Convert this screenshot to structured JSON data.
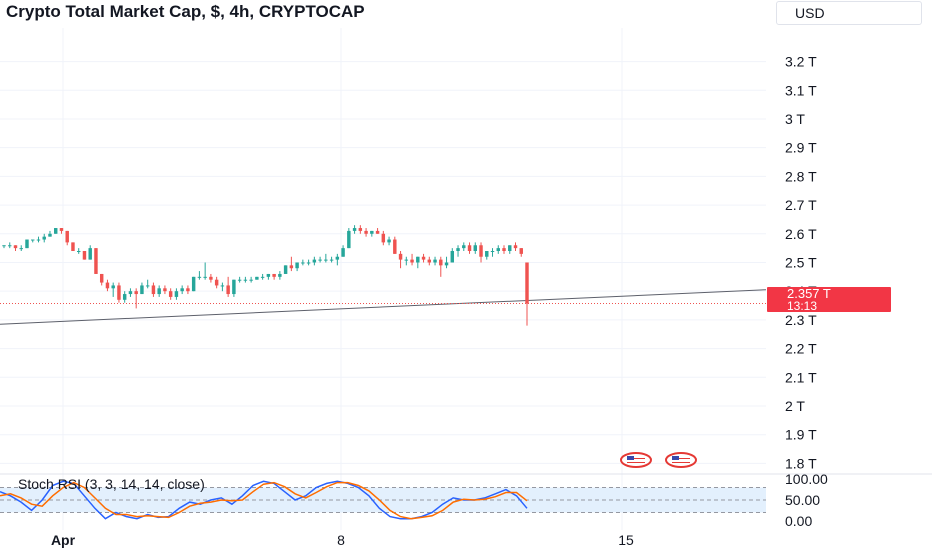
{
  "header": {
    "title": "Crypto Total Market Cap, $, 4h, CRYPTOCAP",
    "currency": "USD"
  },
  "price_badge": {
    "price": "2.357 T",
    "countdown": "13:13"
  },
  "indicator": {
    "label": "Stoch RSI (3, 3, 14, 14, close)"
  },
  "colors": {
    "up": "#26a69a",
    "down": "#ef5350",
    "k_line": "#2962ff",
    "d_line": "#ff6d00",
    "band_fill": "#e3f0fd",
    "trendline": "#5d606b",
    "price_line": "#ef5350"
  },
  "icons": [
    "us-flag-event-icon",
    "us-flag-event-icon"
  ],
  "chart_data": [
    {
      "type": "candlestick",
      "title": "Crypto Total Market Cap, $, 4h, CRYPTOCAP",
      "y_ticks": [
        "3.2 T",
        "3.1 T",
        "3 T",
        "2.9 T",
        "2.8 T",
        "2.7 T",
        "2.6 T",
        "2.5 T",
        "2.4 T",
        "2.3 T",
        "2.2 T",
        "2.1 T",
        "2 T",
        "1.9 T",
        "1.8 T"
      ],
      "y_tick_values": [
        3.2,
        3.1,
        3.0,
        2.9,
        2.8,
        2.7,
        2.6,
        2.5,
        2.4,
        2.3,
        2.2,
        2.1,
        2.0,
        1.9,
        1.8
      ],
      "ylim": [
        1.77,
        3.31
      ],
      "x_ticks": [
        "Apr",
        "8",
        "15"
      ],
      "last_price": 2.357,
      "trendline": {
        "start": 2.285,
        "end": 2.405
      },
      "candles": [
        [
          2.56,
          2.56,
          2.55,
          2.56
        ],
        [
          2.56,
          2.57,
          2.55,
          2.56
        ],
        [
          2.56,
          2.56,
          2.54,
          2.55
        ],
        [
          2.55,
          2.56,
          2.54,
          2.55
        ],
        [
          2.55,
          2.58,
          2.55,
          2.58
        ],
        [
          2.58,
          2.58,
          2.57,
          2.58
        ],
        [
          2.58,
          2.59,
          2.57,
          2.58
        ],
        [
          2.58,
          2.6,
          2.57,
          2.59
        ],
        [
          2.59,
          2.61,
          2.59,
          2.6
        ],
        [
          2.6,
          2.62,
          2.6,
          2.62
        ],
        [
          2.62,
          2.62,
          2.6,
          2.61
        ],
        [
          2.61,
          2.61,
          2.56,
          2.57
        ],
        [
          2.57,
          2.57,
          2.54,
          2.54
        ],
        [
          2.54,
          2.55,
          2.53,
          2.54
        ],
        [
          2.54,
          2.54,
          2.51,
          2.51
        ],
        [
          2.51,
          2.56,
          2.51,
          2.55
        ],
        [
          2.55,
          2.55,
          2.46,
          2.46
        ],
        [
          2.46,
          2.46,
          2.42,
          2.43
        ],
        [
          2.43,
          2.44,
          2.4,
          2.41
        ],
        [
          2.41,
          2.43,
          2.38,
          2.42
        ],
        [
          2.42,
          2.43,
          2.36,
          2.37
        ],
        [
          2.37,
          2.4,
          2.36,
          2.39
        ],
        [
          2.39,
          2.41,
          2.38,
          2.4
        ],
        [
          2.4,
          2.41,
          2.34,
          2.39
        ],
        [
          2.39,
          2.43,
          2.39,
          2.42
        ],
        [
          2.42,
          2.44,
          2.41,
          2.42
        ],
        [
          2.42,
          2.43,
          2.38,
          2.39
        ],
        [
          2.39,
          2.42,
          2.38,
          2.41
        ],
        [
          2.41,
          2.42,
          2.39,
          2.4
        ],
        [
          2.4,
          2.41,
          2.37,
          2.38
        ],
        [
          2.38,
          2.41,
          2.37,
          2.4
        ],
        [
          2.4,
          2.42,
          2.39,
          2.41
        ],
        [
          2.41,
          2.42,
          2.39,
          2.4
        ],
        [
          2.4,
          2.45,
          2.4,
          2.45
        ],
        [
          2.45,
          2.47,
          2.44,
          2.45
        ],
        [
          2.45,
          2.5,
          2.44,
          2.45
        ],
        [
          2.45,
          2.46,
          2.43,
          2.44
        ],
        [
          2.44,
          2.45,
          2.41,
          2.42
        ],
        [
          2.42,
          2.43,
          2.4,
          2.42
        ],
        [
          2.42,
          2.45,
          2.38,
          2.39
        ],
        [
          2.39,
          2.44,
          2.38,
          2.44
        ],
        [
          2.44,
          2.45,
          2.43,
          2.44
        ],
        [
          2.44,
          2.45,
          2.43,
          2.44
        ],
        [
          2.44,
          2.45,
          2.43,
          2.44
        ],
        [
          2.44,
          2.45,
          2.44,
          2.45
        ],
        [
          2.45,
          2.46,
          2.44,
          2.45
        ],
        [
          2.45,
          2.46,
          2.44,
          2.46
        ],
        [
          2.46,
          2.46,
          2.44,
          2.45
        ],
        [
          2.45,
          2.47,
          2.44,
          2.46
        ],
        [
          2.46,
          2.49,
          2.46,
          2.49
        ],
        [
          2.49,
          2.52,
          2.47,
          2.48
        ],
        [
          2.48,
          2.5,
          2.47,
          2.5
        ],
        [
          2.5,
          2.51,
          2.49,
          2.5
        ],
        [
          2.5,
          2.51,
          2.49,
          2.5
        ],
        [
          2.5,
          2.52,
          2.49,
          2.51
        ],
        [
          2.51,
          2.52,
          2.5,
          2.51
        ],
        [
          2.51,
          2.53,
          2.5,
          2.51
        ],
        [
          2.51,
          2.52,
          2.5,
          2.51
        ],
        [
          2.51,
          2.53,
          2.49,
          2.52
        ],
        [
          2.52,
          2.56,
          2.52,
          2.55
        ],
        [
          2.55,
          2.62,
          2.55,
          2.61
        ],
        [
          2.61,
          2.63,
          2.6,
          2.62
        ],
        [
          2.62,
          2.63,
          2.6,
          2.61
        ],
        [
          2.61,
          2.62,
          2.59,
          2.6
        ],
        [
          2.6,
          2.61,
          2.59,
          2.61
        ],
        [
          2.61,
          2.62,
          2.6,
          2.6
        ],
        [
          2.6,
          2.61,
          2.56,
          2.57
        ],
        [
          2.57,
          2.59,
          2.56,
          2.58
        ],
        [
          2.58,
          2.59,
          2.53,
          2.53
        ],
        [
          2.53,
          2.54,
          2.48,
          2.51
        ],
        [
          2.51,
          2.52,
          2.49,
          2.51
        ],
        [
          2.51,
          2.53,
          2.49,
          2.5
        ],
        [
          2.5,
          2.52,
          2.48,
          2.52
        ],
        [
          2.52,
          2.53,
          2.5,
          2.51
        ],
        [
          2.51,
          2.52,
          2.49,
          2.5
        ],
        [
          2.5,
          2.52,
          2.49,
          2.51
        ],
        [
          2.51,
          2.52,
          2.45,
          2.49
        ],
        [
          2.49,
          2.52,
          2.48,
          2.5
        ],
        [
          2.5,
          2.55,
          2.5,
          2.54
        ],
        [
          2.54,
          2.56,
          2.52,
          2.55
        ],
        [
          2.55,
          2.57,
          2.54,
          2.56
        ],
        [
          2.56,
          2.57,
          2.53,
          2.54
        ],
        [
          2.54,
          2.57,
          2.53,
          2.56
        ],
        [
          2.56,
          2.57,
          2.5,
          2.52
        ],
        [
          2.52,
          2.54,
          2.51,
          2.54
        ],
        [
          2.54,
          2.55,
          2.52,
          2.54
        ],
        [
          2.54,
          2.56,
          2.53,
          2.55
        ],
        [
          2.55,
          2.56,
          2.53,
          2.54
        ],
        [
          2.54,
          2.56,
          2.53,
          2.56
        ],
        [
          2.56,
          2.57,
          2.54,
          2.55
        ],
        [
          2.55,
          2.55,
          2.52,
          2.53
        ],
        [
          2.5,
          2.5,
          2.28,
          2.357
        ]
      ]
    },
    {
      "type": "line",
      "title": "Stoch RSI (3, 3, 14, 14, close)",
      "y_ticks": [
        "100.00",
        "50.00",
        "0.00"
      ],
      "y_tick_values": [
        100,
        50,
        0
      ],
      "ylim": [
        -3,
        103
      ],
      "band": [
        20,
        80
      ],
      "series": [
        {
          "values": [
            70,
            60,
            45,
            25,
            50,
            85,
            95,
            90,
            60,
            30,
            5,
            20,
            10,
            5,
            15,
            8,
            10,
            30,
            45,
            40,
            50,
            55,
            40,
            60,
            85,
            95,
            90,
            70,
            50,
            60,
            80,
            90,
            95,
            90,
            80,
            60,
            30,
            10,
            5,
            5,
            10,
            20,
            40,
            55,
            50,
            50,
            55,
            65,
            75,
            60,
            30
          ]
        },
        {
          "values": [
            60,
            65,
            55,
            40,
            35,
            60,
            80,
            92,
            80,
            55,
            30,
            15,
            15,
            10,
            12,
            10,
            8,
            20,
            35,
            42,
            45,
            50,
            48,
            50,
            70,
            88,
            92,
            82,
            65,
            55,
            68,
            82,
            92,
            92,
            85,
            72,
            50,
            25,
            10,
            5,
            8,
            12,
            25,
            45,
            52,
            50,
            52,
            58,
            68,
            68,
            48
          ]
        }
      ]
    }
  ]
}
